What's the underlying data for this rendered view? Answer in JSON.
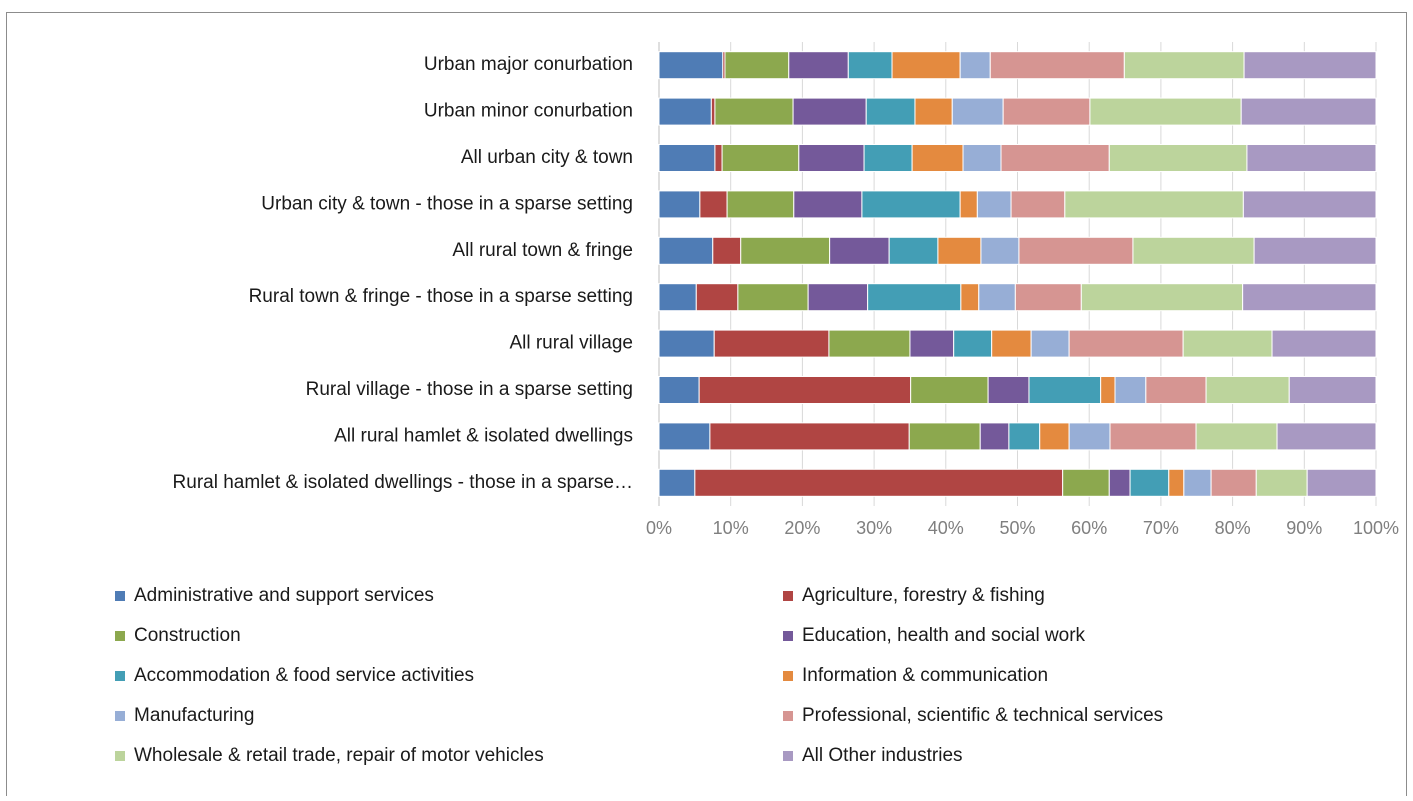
{
  "chart_data": {
    "type": "bar",
    "orientation": "horizontal",
    "stacked": true,
    "grid": true,
    "legend": "bottom",
    "categories": [
      "Urban major conurbation",
      "Urban minor conurbation",
      "All urban city & town",
      "Urban city & town - those in a sparse setting",
      "All rural town & fringe",
      "Rural town & fringe - those in a sparse setting",
      "All rural village",
      "Rural village - those in a sparse setting",
      "All rural hamlet & isolated dwellings",
      "Rural hamlet & isolated dwellings - those in a sparse…"
    ],
    "series": [
      {
        "name": "Administrative and support services",
        "color": "#4f7cb5",
        "values": [
          8.9,
          7.3,
          7.8,
          5.7,
          7.5,
          5.2,
          7.7,
          5.6,
          7.1,
          5.0
        ]
      },
      {
        "name": "Agriculture, forestry & fishing",
        "color": "#b04543",
        "values": [
          0.3,
          0.5,
          1.0,
          3.8,
          3.9,
          5.8,
          16.0,
          29.5,
          27.8,
          51.3
        ]
      },
      {
        "name": "Construction",
        "color": "#8ca84e",
        "values": [
          8.9,
          10.9,
          10.7,
          9.3,
          12.4,
          9.8,
          11.3,
          10.8,
          9.9,
          6.5
        ]
      },
      {
        "name": "Education, health and social work",
        "color": "#74599a",
        "values": [
          8.3,
          10.2,
          9.1,
          9.5,
          8.3,
          8.3,
          6.1,
          5.7,
          4.0,
          2.9
        ]
      },
      {
        "name": "Accommodation & food service activities",
        "color": "#439eb5",
        "values": [
          6.1,
          6.8,
          6.7,
          13.7,
          6.8,
          13.0,
          5.3,
          10.0,
          4.3,
          5.4
        ]
      },
      {
        "name": "Information & communication",
        "color": "#e48a3f",
        "values": [
          9.5,
          5.2,
          7.1,
          2.4,
          6.0,
          2.5,
          5.5,
          2.0,
          4.1,
          2.1
        ]
      },
      {
        "name": "Manufacturing",
        "color": "#97aed6",
        "values": [
          4.2,
          7.1,
          5.3,
          4.7,
          5.3,
          5.1,
          5.3,
          4.3,
          5.7,
          3.8
        ]
      },
      {
        "name": "Professional, scientific & technical services",
        "color": "#d69592",
        "values": [
          18.7,
          12.1,
          15.1,
          7.5,
          15.9,
          9.2,
          15.9,
          8.4,
          12.0,
          6.3
        ]
      },
      {
        "name": "Wholesale & retail trade, repair of motor vehicles",
        "color": "#bcd49c",
        "values": [
          16.7,
          21.1,
          19.2,
          24.9,
          16.9,
          22.5,
          12.4,
          11.6,
          11.3,
          7.1
        ]
      },
      {
        "name": "All Other industries",
        "color": "#a899c2",
        "values": [
          18.4,
          18.8,
          18.0,
          18.5,
          17.0,
          18.6,
          14.5,
          12.1,
          13.8,
          9.6
        ]
      }
    ],
    "xlim": [
      0,
      100
    ],
    "xticks": [
      {
        "value": 0,
        "label": "0%"
      },
      {
        "value": 10,
        "label": "10%"
      },
      {
        "value": 20,
        "label": "20%"
      },
      {
        "value": 30,
        "label": "30%"
      },
      {
        "value": 40,
        "label": "40%"
      },
      {
        "value": 50,
        "label": "50%"
      },
      {
        "value": 60,
        "label": "60%"
      },
      {
        "value": 70,
        "label": "70%"
      },
      {
        "value": 80,
        "label": "80%"
      },
      {
        "value": 90,
        "label": "90%"
      },
      {
        "value": 100,
        "label": "100%"
      }
    ]
  }
}
